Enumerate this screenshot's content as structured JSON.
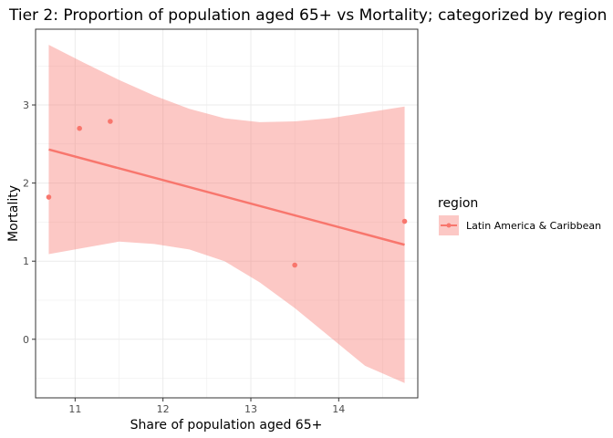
{
  "chart_data": {
    "type": "scatter",
    "title": "Tier 2: Proportion of population aged 65+ vs Mortality; categorized by region",
    "xlabel": "Share of population aged 65+",
    "ylabel": "Mortality",
    "xlim": [
      10.55,
      14.9
    ],
    "ylim": [
      -0.75,
      3.97
    ],
    "x_ticks": [
      11,
      12,
      13,
      14
    ],
    "y_ticks": [
      0,
      1,
      2,
      3
    ],
    "grid": true,
    "legend": {
      "title": "region",
      "position": "right",
      "entries": [
        "Latin America & Caribbean"
      ]
    },
    "series": [
      {
        "name": "Latin America & Caribbean",
        "color": "#F8766D",
        "points": [
          {
            "x": 10.7,
            "y": 1.82
          },
          {
            "x": 11.05,
            "y": 2.7
          },
          {
            "x": 11.4,
            "y": 2.79
          },
          {
            "x": 13.5,
            "y": 0.95
          },
          {
            "x": 14.75,
            "y": 1.51
          }
        ],
        "trend_line": {
          "x": [
            10.7,
            14.75
          ],
          "y": [
            2.43,
            1.21
          ]
        },
        "confidence_band": {
          "x": [
            10.7,
            11.1,
            11.5,
            11.9,
            12.3,
            12.7,
            13.1,
            13.5,
            13.9,
            14.3,
            14.75
          ],
          "upper": [
            3.77,
            3.54,
            3.32,
            3.12,
            2.95,
            2.83,
            2.78,
            2.79,
            2.83,
            2.9,
            2.98
          ],
          "lower": [
            1.09,
            1.17,
            1.25,
            1.22,
            1.15,
            1.0,
            0.73,
            0.4,
            0.03,
            -0.34,
            -0.56
          ]
        }
      }
    ]
  }
}
